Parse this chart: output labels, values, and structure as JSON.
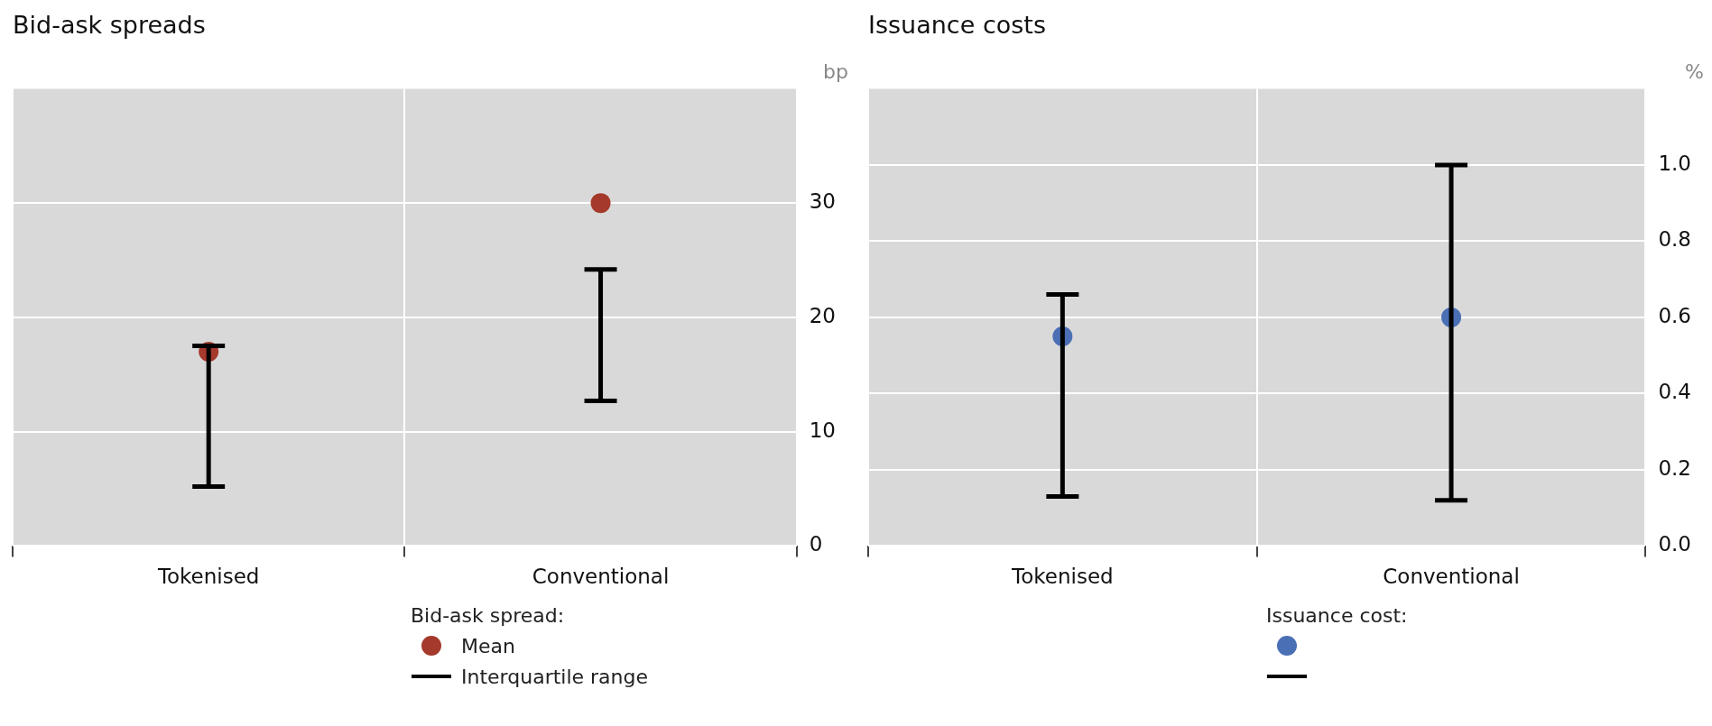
{
  "chart_data": [
    {
      "type": "scatter",
      "title": "Bid-ask spreads",
      "ylabel": "bp",
      "categories": [
        "Tokenised",
        "Conventional"
      ],
      "series": [
        {
          "name": "Mean",
          "color": "#a5392b",
          "values": [
            17,
            30
          ],
          "errors": [
            [
              5.2,
              17.5
            ],
            [
              12.7,
              24.2
            ]
          ]
        }
      ],
      "ylim": [
        0,
        40
      ],
      "yticks": [
        0,
        10,
        20,
        30
      ],
      "grid": true,
      "marker": "circle",
      "legend": "bottom",
      "legend_title": "Bid-ask spread:",
      "annotations": [
        "Interquartile range"
      ]
    },
    {
      "type": "scatter",
      "title": "Issuance costs",
      "ylabel": "%",
      "categories": [
        "Tokenised",
        "Conventional"
      ],
      "series": [
        {
          "color": "#4a6fb5",
          "values": [
            0.55,
            0.6
          ],
          "errors": [
            [
              0.13,
              0.66
            ],
            [
              0.12,
              1.0
            ]
          ]
        }
      ],
      "ylim": [
        0,
        1.2
      ],
      "yticks": [
        {
          "value": 0,
          "label": "0.0"
        },
        {
          "value": 0.2,
          "label": "0.2"
        },
        {
          "value": 0.4,
          "label": "0.4"
        },
        {
          "value": 0.6,
          "label": "0.6"
        },
        {
          "value": 0.8,
          "label": "0.8"
        },
        {
          "value": 1,
          "label": "1.0"
        }
      ],
      "grid": true,
      "marker": "circle",
      "legend_title": "Issuance cost:"
    }
  ]
}
